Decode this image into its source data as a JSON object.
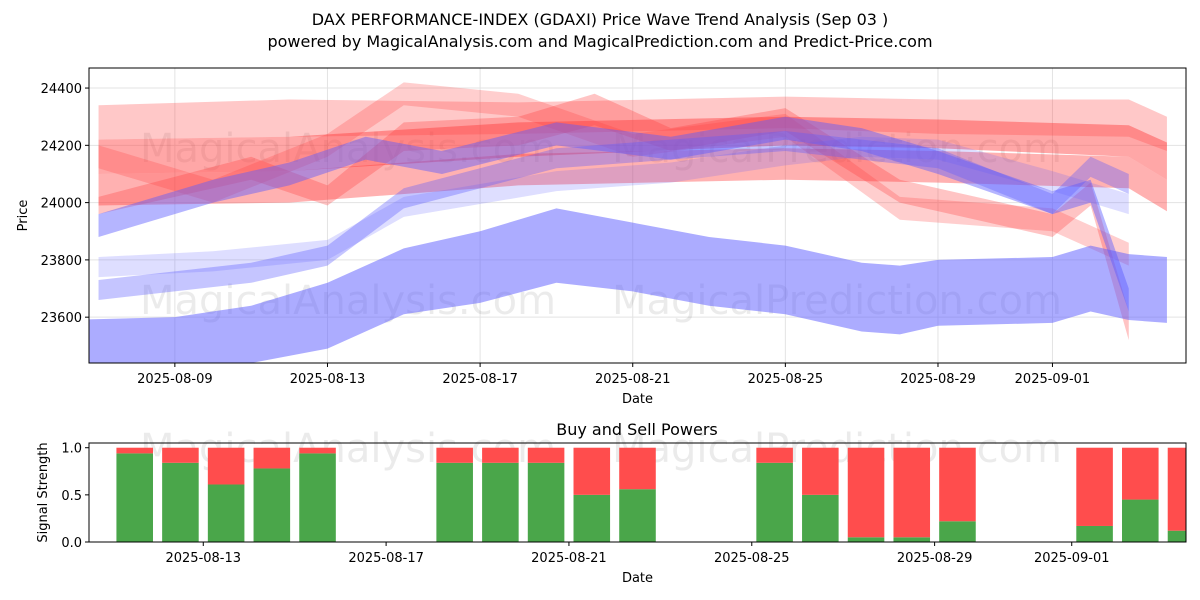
{
  "header": {
    "title": "DAX PERFORMANCE-INDEX (GDAXI) Price Wave Trend Analysis (Sep 03 )",
    "subtitle": "powered by MagicalAnalysis.com and MagicalPrediction.com and Predict-Price.com"
  },
  "watermarks": {
    "left": "MagicalAnalysis.com",
    "right": "MagicalPrediction.com"
  },
  "colors": {
    "buy": "#4aa64a",
    "sell": "#ff4d4d",
    "red_band": "#ff3b3b",
    "blue_band": "#5a5aff",
    "grid": "#e3e3e3"
  },
  "chart_data": [
    {
      "type": "area",
      "title": "",
      "xlabel": "Date",
      "ylabel": "Price",
      "x_range": [
        "2025-08-06T18:00",
        "2025-09-04T12:00"
      ],
      "ylim": [
        23440,
        24470
      ],
      "x_ticks": [
        "2025-08-09",
        "2025-08-13",
        "2025-08-17",
        "2025-08-21",
        "2025-08-25",
        "2025-08-29",
        "2025-09-01"
      ],
      "y_ticks": [
        23600,
        23800,
        24000,
        24200,
        24400
      ],
      "grid": true,
      "series": [
        {
          "name": "red-band-1",
          "color": "red",
          "opacity": 0.28,
          "x": [
            "2025-08-07",
            "2025-08-12",
            "2025-08-18",
            "2025-08-25",
            "2025-08-29",
            "2025-09-03",
            "2025-09-04"
          ],
          "lower": [
            24220,
            24230,
            24240,
            24260,
            24240,
            24230,
            24180
          ],
          "upper": [
            24340,
            24360,
            24350,
            24370,
            24360,
            24360,
            24300
          ]
        },
        {
          "name": "red-band-2",
          "color": "red",
          "opacity": 0.45,
          "x": [
            "2025-08-07",
            "2025-08-12",
            "2025-08-18",
            "2025-08-25",
            "2025-08-29",
            "2025-09-03",
            "2025-09-04"
          ],
          "lower": [
            24100,
            24110,
            24160,
            24200,
            24190,
            24160,
            24080
          ],
          "upper": [
            24220,
            24230,
            24280,
            24300,
            24290,
            24270,
            24210
          ]
        },
        {
          "name": "red-band-3",
          "color": "red",
          "opacity": 0.4,
          "x": [
            "2025-08-07",
            "2025-08-12",
            "2025-08-18",
            "2025-08-25",
            "2025-08-29",
            "2025-09-03",
            "2025-09-04"
          ],
          "lower": [
            23990,
            24000,
            24060,
            24080,
            24070,
            24050,
            23970
          ],
          "upper": [
            24100,
            24110,
            24170,
            24190,
            24180,
            24160,
            24080
          ]
        },
        {
          "name": "red-band-4",
          "color": "red",
          "opacity": 0.3,
          "x": [
            "2025-08-07",
            "2025-08-11",
            "2025-08-13",
            "2025-08-15",
            "2025-08-18",
            "2025-08-20",
            "2025-08-22",
            "2025-08-25",
            "2025-08-28",
            "2025-09-01",
            "2025-09-02",
            "2025-09-03"
          ],
          "lower": [
            23960,
            24080,
            23990,
            24180,
            24200,
            24270,
            24180,
            24250,
            24000,
            23880,
            23990,
            23520
          ],
          "upper": [
            24020,
            24160,
            24060,
            24280,
            24300,
            24380,
            24260,
            24330,
            24080,
            23960,
            24070,
            23620
          ]
        },
        {
          "name": "red-band-5",
          "color": "red",
          "opacity": 0.25,
          "x": [
            "2025-08-07",
            "2025-08-10",
            "2025-08-13",
            "2025-08-15",
            "2025-08-18",
            "2025-08-21",
            "2025-08-25",
            "2025-08-28",
            "2025-09-01",
            "2025-09-03"
          ],
          "lower": [
            24120,
            24000,
            24160,
            24340,
            24300,
            24160,
            24230,
            23940,
            23900,
            23780
          ],
          "upper": [
            24200,
            24080,
            24240,
            24420,
            24380,
            24240,
            24310,
            24020,
            23980,
            23860
          ]
        },
        {
          "name": "blue-band-1",
          "color": "blue",
          "opacity": 0.2,
          "x": [
            "2025-08-07",
            "2025-08-10",
            "2025-08-13",
            "2025-08-15",
            "2025-08-19",
            "2025-08-22",
            "2025-08-25",
            "2025-08-27",
            "2025-08-29",
            "2025-09-01",
            "2025-09-02",
            "2025-09-03"
          ],
          "lower": [
            23740,
            23760,
            23800,
            23950,
            24040,
            24070,
            24130,
            24160,
            24150,
            24040,
            24000,
            23960
          ],
          "upper": [
            23810,
            23830,
            23870,
            24020,
            24110,
            24140,
            24200,
            24230,
            24220,
            24110,
            24070,
            24030
          ]
        },
        {
          "name": "blue-band-2",
          "color": "blue",
          "opacity": 0.35,
          "x": [
            "2025-08-07",
            "2025-08-11",
            "2025-08-13",
            "2025-08-15",
            "2025-08-19",
            "2025-08-22",
            "2025-08-25",
            "2025-08-29",
            "2025-09-01",
            "2025-09-02",
            "2025-09-03"
          ],
          "lower": [
            23660,
            23720,
            23780,
            23980,
            24120,
            24150,
            24180,
            24120,
            23960,
            24090,
            24030
          ],
          "upper": [
            23730,
            23790,
            23850,
            24050,
            24190,
            24220,
            24250,
            24190,
            24030,
            24160,
            24100
          ]
        },
        {
          "name": "blue-band-3",
          "color": "blue",
          "opacity": 0.45,
          "x": [
            "2025-08-07",
            "2025-08-10",
            "2025-08-12",
            "2025-08-14",
            "2025-08-16",
            "2025-08-19",
            "2025-08-22",
            "2025-08-25",
            "2025-08-27",
            "2025-08-29",
            "2025-09-01",
            "2025-09-02",
            "2025-09-03"
          ],
          "lower": [
            23880,
            24000,
            24060,
            24150,
            24100,
            24200,
            24150,
            24220,
            24180,
            24100,
            23960,
            24000,
            23620
          ],
          "upper": [
            23960,
            24080,
            24140,
            24230,
            24180,
            24280,
            24230,
            24300,
            24260,
            24180,
            24040,
            24080,
            23700
          ]
        },
        {
          "name": "blue-band-4",
          "color": "blue",
          "opacity": 0.5,
          "x": [
            "2025-08-06",
            "2025-08-09",
            "2025-08-11",
            "2025-08-13",
            "2025-08-15",
            "2025-08-17",
            "2025-08-19",
            "2025-08-21",
            "2025-08-23",
            "2025-08-25",
            "2025-08-26",
            "2025-08-27",
            "2025-08-28",
            "2025-08-29",
            "2025-09-01",
            "2025-09-02",
            "2025-09-03",
            "2025-09-04"
          ],
          "lower": [
            23440,
            23430,
            23440,
            23490,
            23610,
            23650,
            23720,
            23690,
            23640,
            23610,
            23580,
            23550,
            23540,
            23570,
            23580,
            23620,
            23590,
            23580
          ],
          "upper": [
            23590,
            23600,
            23640,
            23720,
            23840,
            23900,
            23980,
            23930,
            23880,
            23850,
            23820,
            23790,
            23780,
            23800,
            23810,
            23850,
            23820,
            23810
          ]
        }
      ]
    },
    {
      "type": "bar",
      "title": "Buy and Sell Powers",
      "xlabel": "Date",
      "ylabel": "Signal Strength",
      "x_range": [
        "2025-08-10T12:00",
        "2025-09-03T12:00"
      ],
      "ylim": [
        0,
        1.05
      ],
      "x_ticks": [
        "2025-08-13",
        "2025-08-17",
        "2025-08-21",
        "2025-08-25",
        "2025-08-29",
        "2025-09-01"
      ],
      "y_ticks": [
        "0.0",
        "0.5",
        "1.0"
      ],
      "grid": false,
      "categories": [
        "2025-08-11",
        "2025-08-12",
        "2025-08-13",
        "2025-08-14",
        "2025-08-15",
        "2025-08-18",
        "2025-08-19",
        "2025-08-20",
        "2025-08-21",
        "2025-08-22",
        "2025-08-25",
        "2025-08-26",
        "2025-08-27",
        "2025-08-28",
        "2025-08-29",
        "2025-09-01",
        "2025-09-02",
        "2025-09-03"
      ],
      "series": [
        {
          "name": "Buy",
          "values": [
            0.94,
            0.84,
            0.61,
            0.78,
            0.94,
            0.84,
            0.84,
            0.84,
            0.5,
            0.56,
            0.84,
            0.5,
            0.05,
            0.05,
            0.22,
            0.17,
            0.45,
            0.12
          ]
        },
        {
          "name": "Sell",
          "values": [
            0.06,
            0.16,
            0.39,
            0.22,
            0.06,
            0.16,
            0.16,
            0.16,
            0.5,
            0.44,
            0.16,
            0.5,
            0.95,
            0.95,
            0.78,
            0.83,
            0.55,
            0.88
          ]
        }
      ]
    }
  ]
}
